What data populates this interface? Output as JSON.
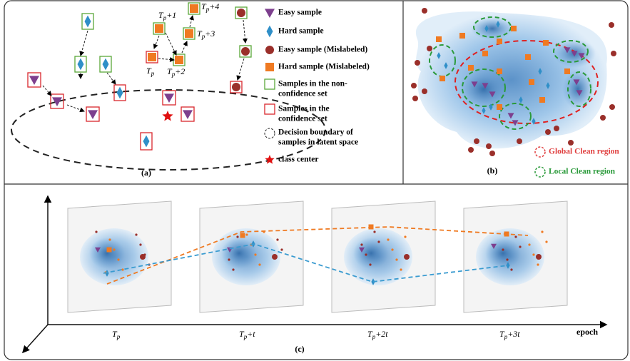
{
  "panel_a": {
    "step_labels": [
      {
        "base": "T",
        "sub": "p",
        "suffix": "+1"
      },
      {
        "base": "T",
        "sub": "p",
        "suffix": "+4"
      },
      {
        "base": "T",
        "sub": "p",
        "suffix": "+3"
      },
      {
        "base": "T",
        "sub": "p",
        "suffix": ""
      },
      {
        "base": "T",
        "sub": "p",
        "suffix": "+2"
      }
    ],
    "legend": [
      [
        "Easy sample"
      ],
      [
        "Hard sample"
      ],
      [
        "Easy sample (Mislabeled)"
      ],
      [
        "Hard sample (Mislabeled)"
      ],
      [
        "Samples in the non-",
        "confidence set"
      ],
      [
        "Samples in the",
        "confidence set"
      ],
      [
        "Decision boundary of",
        "samples in latent space"
      ],
      [
        "class center"
      ]
    ],
    "caption": "(a)"
  },
  "panel_b": {
    "legend": [
      "Global Clean region",
      "Local Clean region"
    ],
    "caption": "(b)"
  },
  "panel_c": {
    "epoch_labels": [
      {
        "base": "T",
        "sub": "p",
        "suffix": ""
      },
      {
        "base": "T",
        "sub": "p",
        "suffix": "+t"
      },
      {
        "base": "T",
        "sub": "p",
        "suffix": "+2t"
      },
      {
        "base": "T",
        "sub": "p",
        "suffix": "+3t"
      }
    ],
    "axis_label": "epoch",
    "caption": "(c)"
  }
}
